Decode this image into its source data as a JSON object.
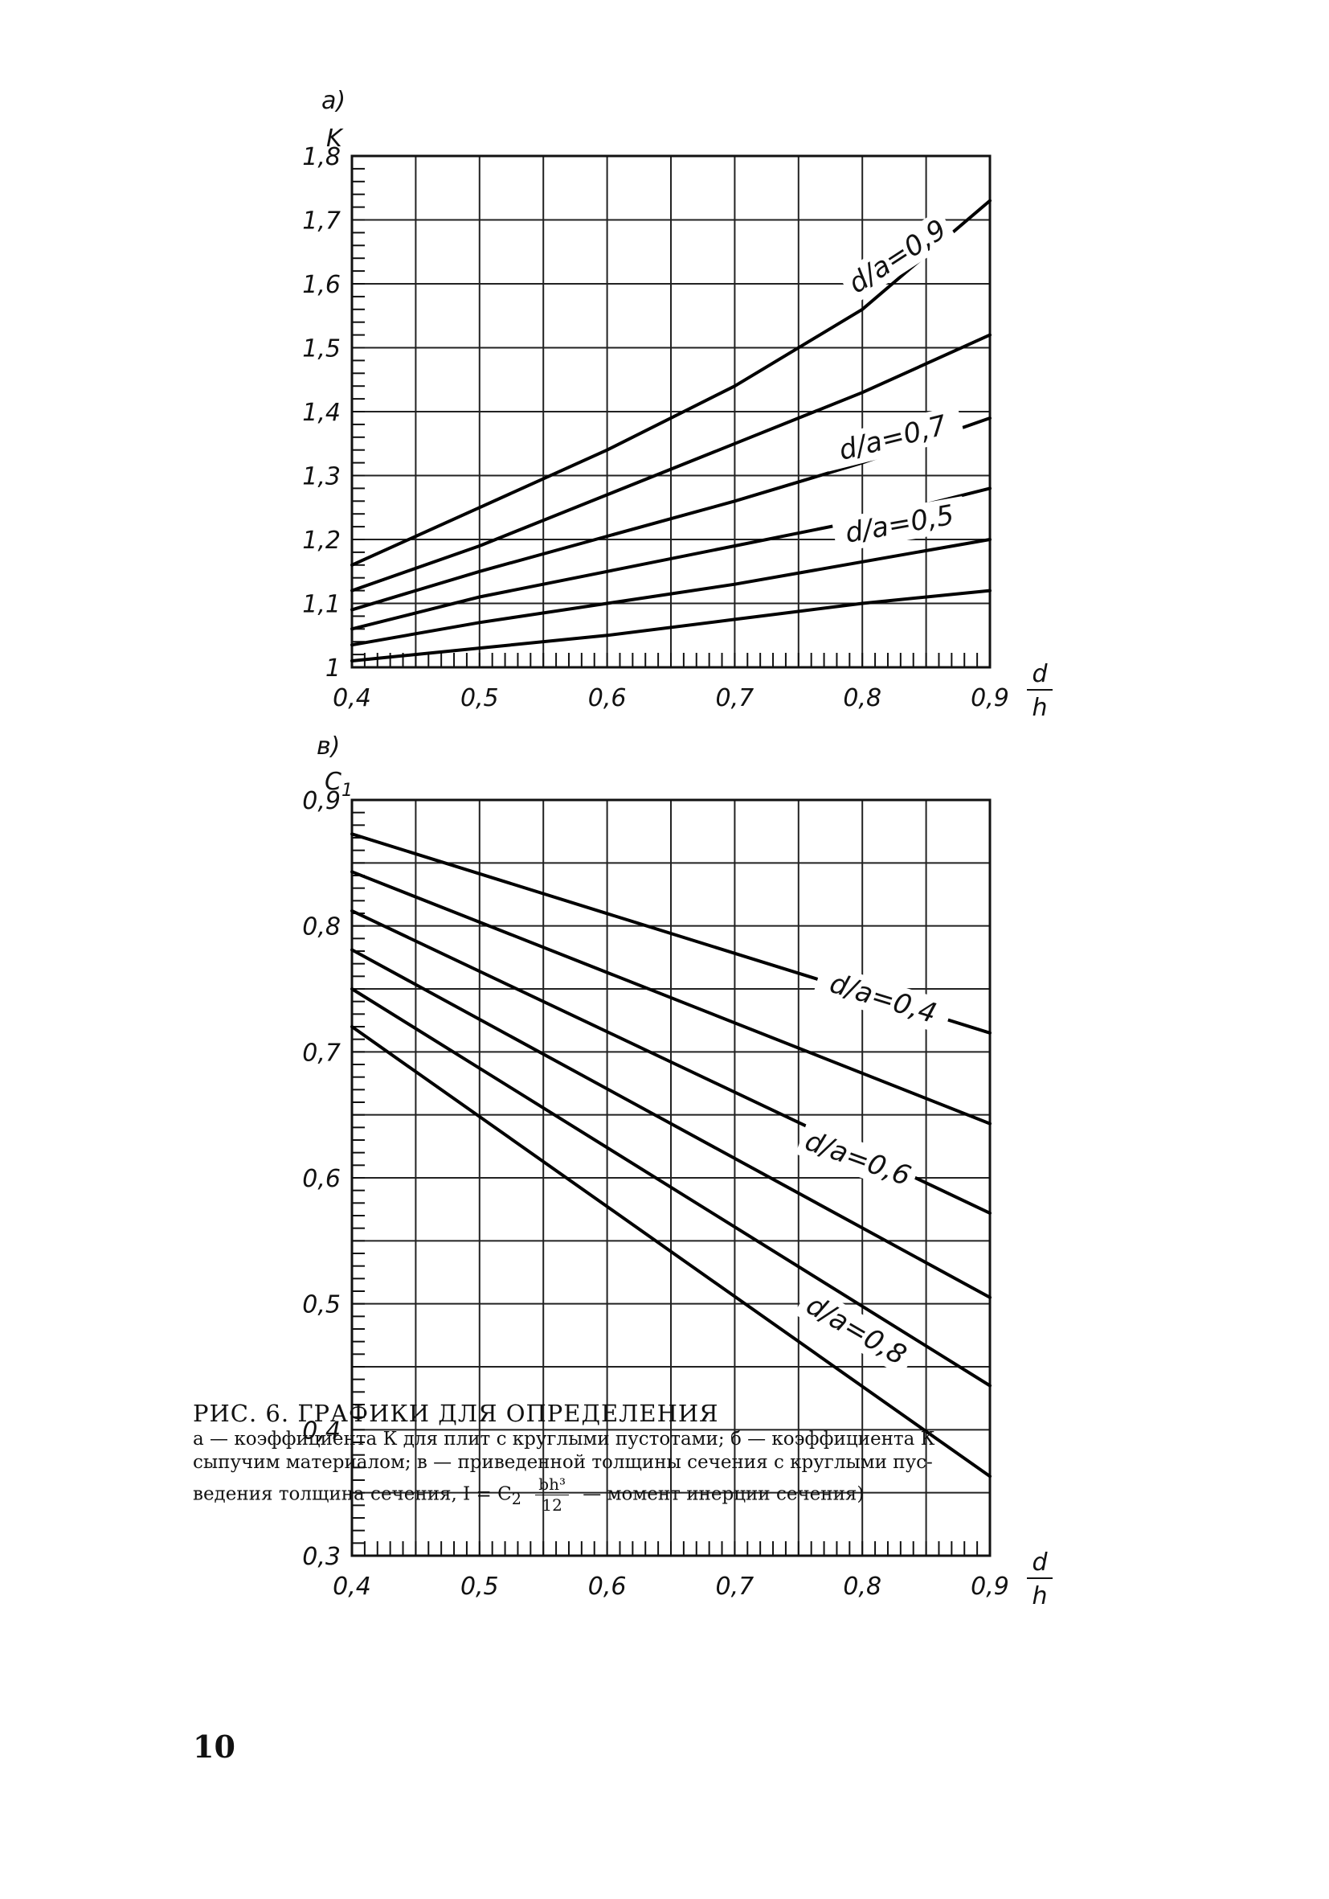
{
  "chart_data": [
    {
      "type": "line",
      "panel_label": "a)",
      "ylabel": "K",
      "xlabel": {
        "numerator": "d",
        "denominator": "h"
      },
      "xlim": [
        0.4,
        0.9
      ],
      "ylim": [
        1.0,
        1.8
      ],
      "x_ticks": [
        0.4,
        0.5,
        0.6,
        0.7,
        0.8,
        0.9
      ],
      "x_tick_labels": [
        "0,4",
        "0,5",
        "0,6",
        "0,7",
        "0,8",
        "0,9"
      ],
      "y_ticks": [
        1.0,
        1.1,
        1.2,
        1.3,
        1.4,
        1.5,
        1.6,
        1.7,
        1.8
      ],
      "y_tick_labels": [
        "1",
        "1,1",
        "1,2",
        "1,3",
        "1,4",
        "1,5",
        "1,6",
        "1,7",
        "1,8"
      ],
      "grid": true,
      "x_grid_step": 0.05,
      "y_grid_step": 0.1,
      "annotations": [
        "d/a=0,9",
        "d/a=0,7",
        "d/a=0,5"
      ],
      "series": [
        {
          "x": [
            0.4,
            0.5,
            0.6,
            0.7,
            0.8,
            0.9
          ],
          "values": [
            1.16,
            1.25,
            1.34,
            1.44,
            1.56,
            1.73
          ]
        },
        {
          "x": [
            0.4,
            0.5,
            0.6,
            0.7,
            0.8,
            0.9
          ],
          "values": [
            1.12,
            1.19,
            1.27,
            1.35,
            1.43,
            1.52
          ]
        },
        {
          "x": [
            0.4,
            0.5,
            0.6,
            0.7,
            0.8,
            0.9
          ],
          "values": [
            1.09,
            1.15,
            1.205,
            1.26,
            1.32,
            1.39
          ]
        },
        {
          "x": [
            0.4,
            0.5,
            0.6,
            0.7,
            0.8,
            0.9
          ],
          "values": [
            1.06,
            1.11,
            1.15,
            1.19,
            1.23,
            1.28
          ]
        },
        {
          "x": [
            0.4,
            0.5,
            0.6,
            0.7,
            0.8,
            0.9
          ],
          "values": [
            1.035,
            1.07,
            1.1,
            1.13,
            1.165,
            1.2
          ]
        },
        {
          "x": [
            0.4,
            0.5,
            0.6,
            0.7,
            0.8,
            0.9
          ],
          "values": [
            1.01,
            1.03,
            1.05,
            1.075,
            1.1,
            1.12
          ]
        }
      ]
    },
    {
      "type": "line",
      "panel_label": "в)",
      "ylabel": "C",
      "ylabel_sub": "1",
      "xlabel": {
        "numerator": "d",
        "denominator": "h"
      },
      "xlim": [
        0.4,
        0.9
      ],
      "ylim": [
        0.3,
        0.9
      ],
      "x_ticks": [
        0.4,
        0.5,
        0.6,
        0.7,
        0.8,
        0.9
      ],
      "x_tick_labels": [
        "0,4",
        "0,5",
        "0,6",
        "0,7",
        "0,8",
        "0,9"
      ],
      "y_ticks": [
        0.3,
        0.4,
        0.5,
        0.6,
        0.7,
        0.8,
        0.9
      ],
      "y_tick_labels": [
        "0,3",
        "0,4",
        "0,5",
        "0,6",
        "0,7",
        "0,8",
        "0,9"
      ],
      "grid": true,
      "x_grid_step": 0.05,
      "y_grid_step": 0.05,
      "annotations": [
        "d/a=0,4",
        "d/a=0,6",
        "d/a=0,8"
      ],
      "series": [
        {
          "x": [
            0.4,
            0.9
          ],
          "values": [
            0.873,
            0.715
          ]
        },
        {
          "x": [
            0.4,
            0.9
          ],
          "values": [
            0.843,
            0.643
          ]
        },
        {
          "x": [
            0.4,
            0.9
          ],
          "values": [
            0.812,
            0.572
          ]
        },
        {
          "x": [
            0.4,
            0.9
          ],
          "values": [
            0.781,
            0.505
          ]
        },
        {
          "x": [
            0.4,
            0.9
          ],
          "values": [
            0.75,
            0.435
          ]
        },
        {
          "x": [
            0.4,
            0.9
          ],
          "values": [
            0.72,
            0.363
          ]
        }
      ]
    }
  ],
  "caption": {
    "title": "РИС. 6. ГРАФИКИ ДЛЯ ОПРЕДЕЛЕНИЯ",
    "line1": "а — коэффициента К для плит с круглыми пустотами; б — коэффициента К",
    "line2": "сыпучим материалом; в — приведенной толщины сечения с круглыми пус-",
    "line3_before": "ведения толщина сечения, I = C",
    "line3_sub": "2",
    "formula_num": "bh³",
    "formula_den": "12",
    "line3_after": "— момент инерции сечения)"
  },
  "page_number": "10"
}
